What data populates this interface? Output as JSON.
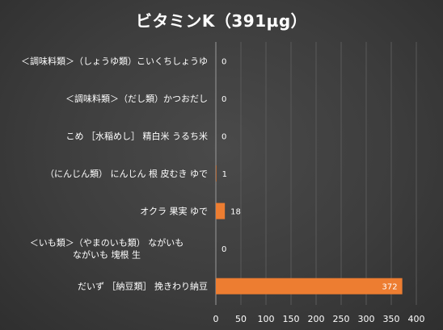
{
  "chart_data": {
    "type": "bar",
    "orientation": "horizontal",
    "title": "ビタミンK（391µg）",
    "categories": [
      "＜調味料類＞（しょうゆ類）こいくちしょうゆ",
      "＜調味料類＞（だし類）かつおだし",
      "こめ ［水稲めし］ 精白米 うるち米",
      "（にんじん類） にんじん 根 皮むき ゆで",
      "オクラ 果実 ゆで",
      "＜いも類＞（やまのいも類） ながいも ながいも 塊根 生",
      "だいず ［納豆類］ 挽きわり納豆"
    ],
    "values": [
      0,
      0,
      0,
      1,
      18,
      0,
      372
    ],
    "data_labels": [
      "0",
      "0",
      "0",
      "1",
      "18",
      "0",
      "372"
    ],
    "xlim": [
      0,
      400
    ],
    "x_ticks": [
      0,
      50,
      100,
      150,
      200,
      250,
      300,
      350,
      400
    ],
    "xlabel": "",
    "ylabel": "",
    "grid": true,
    "legend": "none",
    "colors": {
      "bar": "#ed7d31",
      "text": "#ffffff",
      "grid": "#5a5a5a",
      "axis": "#9a9a9a"
    }
  }
}
